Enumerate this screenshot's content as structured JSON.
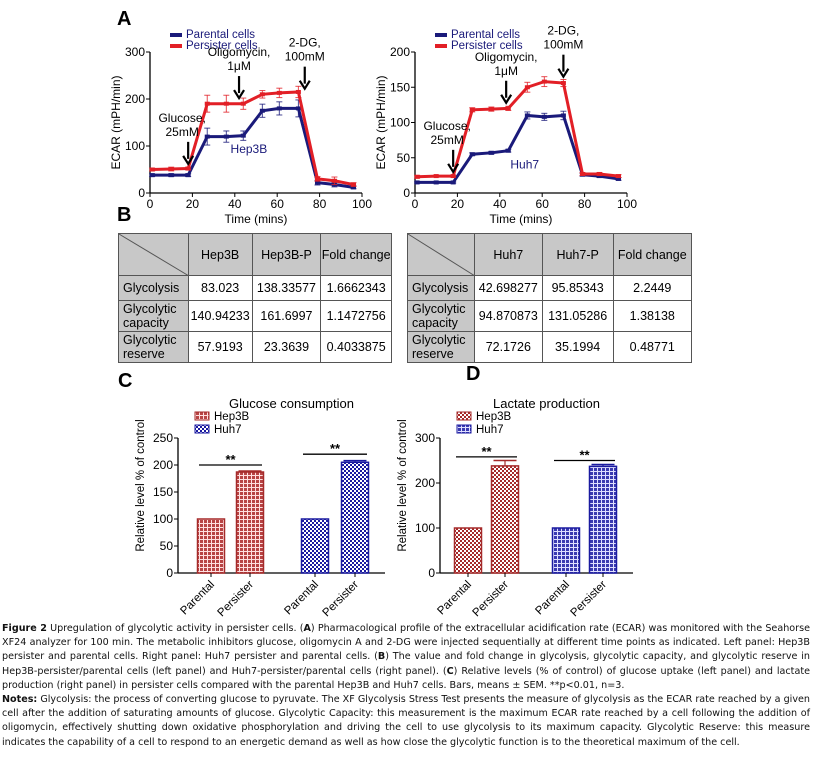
{
  "panels": {
    "A": "A",
    "B": "B",
    "C": "C",
    "D": "D"
  },
  "chart_data": [
    {
      "id": "ecar-hep3b",
      "type": "line",
      "title": "",
      "annotation_label": "Hep3B",
      "xlabel": "Time (mins)",
      "ylabel": "ECAR (mPH/min)",
      "xlim": [
        0,
        100
      ],
      "ylim": [
        0,
        300
      ],
      "xticks": [
        0,
        20,
        40,
        60,
        80,
        100
      ],
      "yticks": [
        0,
        100,
        200,
        300
      ],
      "legend": "top-left",
      "x": [
        1,
        10,
        18,
        27,
        36,
        44,
        53,
        61,
        70,
        79,
        87,
        96
      ],
      "series": [
        {
          "name": "Parental cells",
          "color": "#1a1a7a",
          "values": [
            38,
            38,
            38,
            120,
            120,
            122,
            175,
            180,
            180,
            22,
            18,
            12
          ],
          "errors": [
            3,
            3,
            3,
            18,
            12,
            10,
            14,
            14,
            18,
            5,
            5,
            3
          ]
        },
        {
          "name": "Persister cells",
          "color": "#e21f26",
          "values": [
            50,
            51,
            52,
            190,
            190,
            190,
            210,
            213,
            215,
            30,
            26,
            18
          ],
          "errors": [
            3,
            4,
            3,
            18,
            18,
            12,
            8,
            10,
            12,
            5,
            8,
            4
          ]
        }
      ],
      "annotations": [
        {
          "text": [
            "Glucose,",
            "25mM"
          ],
          "x": 18,
          "arrow_to": 62
        },
        {
          "text": [
            "Oligomycin,",
            "1μM"
          ],
          "x": 42,
          "arrow_to": 202
        },
        {
          "text": [
            "2-DG,",
            "100mM"
          ],
          "x": 73,
          "arrow_to": 222
        }
      ]
    },
    {
      "id": "ecar-huh7",
      "type": "line",
      "title": "",
      "annotation_label": "Huh7",
      "xlabel": "Time (mins)",
      "ylabel": "ECAR (mPH/min)",
      "xlim": [
        0,
        100
      ],
      "ylim": [
        0,
        200
      ],
      "xticks": [
        0,
        20,
        40,
        60,
        80,
        100
      ],
      "yticks": [
        0,
        50,
        100,
        150,
        200
      ],
      "legend": "top-left",
      "x": [
        1,
        10,
        18,
        27,
        36,
        44,
        53,
        61,
        70,
        79,
        87,
        96
      ],
      "series": [
        {
          "name": "Parental cells",
          "color": "#1a1a7a",
          "values": [
            15,
            15,
            15,
            55,
            57,
            60,
            110,
            108,
            110,
            26,
            24,
            20
          ],
          "errors": [
            1,
            1,
            1,
            2,
            2,
            2,
            5,
            5,
            6,
            2,
            2,
            2
          ]
        },
        {
          "name": "Persister cells",
          "color": "#e21f26",
          "values": [
            23,
            24,
            24,
            118,
            119,
            120,
            150,
            158,
            156,
            27,
            27,
            24
          ],
          "errors": [
            2,
            1,
            1,
            3,
            3,
            3,
            7,
            7,
            5,
            2,
            2,
            2
          ]
        }
      ],
      "annotations": [
        {
          "text": [
            "Glucose,",
            "25mM"
          ],
          "x": 18,
          "arrow_to": 30
        },
        {
          "text": [
            "Oligomycin,",
            "1μM"
          ],
          "x": 43,
          "arrow_to": 128
        },
        {
          "text": [
            "2-DG,",
            "100mM"
          ],
          "x": 70,
          "arrow_to": 165
        }
      ]
    },
    {
      "id": "glucose-consumption",
      "type": "bar",
      "title": "Glucose consumption",
      "xlabel": "",
      "ylabel": "Relative level % of control",
      "ylim": [
        0,
        250
      ],
      "yticks": [
        0,
        50,
        100,
        150,
        200,
        250
      ],
      "legend": "top-left",
      "categories": [
        "Parental",
        "Persister",
        "Parental",
        "Persister"
      ],
      "groups": [
        "Hep3B",
        "Hep3B",
        "Huh7",
        "Huh7"
      ],
      "values": [
        100,
        187,
        100,
        205
      ],
      "errors": [
        0,
        2,
        0,
        3
      ],
      "series": [
        {
          "name": "Hep3B",
          "color": "#a52a2a"
        },
        {
          "name": "Huh7",
          "color": "#1a1aa0"
        }
      ],
      "significance": [
        {
          "label": "**",
          "between": [
            0,
            1
          ],
          "y": 200
        },
        {
          "label": "**",
          "between": [
            2,
            3
          ],
          "y": 220
        }
      ]
    },
    {
      "id": "lactate-production",
      "type": "bar",
      "title": "Lactate production",
      "xlabel": "",
      "ylabel": "Relative level % of control",
      "ylim": [
        0,
        300
      ],
      "yticks": [
        0,
        100,
        200,
        300
      ],
      "legend": "top-left",
      "categories": [
        "Parental",
        "Persister",
        "Parental",
        "Persister"
      ],
      "groups": [
        "Hep3B",
        "Hep3B",
        "Huh7",
        "Huh7"
      ],
      "values": [
        100,
        238,
        100,
        237
      ],
      "errors": [
        0,
        12,
        0,
        4
      ],
      "series": [
        {
          "name": "Hep3B",
          "color": "#a52a2a"
        },
        {
          "name": "Huh7",
          "color": "#1a1aa0"
        }
      ],
      "significance": [
        {
          "label": "**",
          "between": [
            0,
            1
          ],
          "y": 258
        },
        {
          "label": "**",
          "between": [
            2,
            3
          ],
          "y": 250
        }
      ]
    }
  ],
  "tables": [
    {
      "headers": [
        "Hep3B",
        "Hep3B-P",
        "Fold change"
      ],
      "rows": [
        {
          "label": [
            "Glycolysis"
          ],
          "values": [
            "83.023",
            "138.33577",
            "1.6662343"
          ]
        },
        {
          "label": [
            "Glycolytic",
            "capacity"
          ],
          "values": [
            "140.94233",
            "161.6997",
            "1.1472756"
          ]
        },
        {
          "label": [
            "Glycolytic",
            "reserve"
          ],
          "values": [
            "57.9193",
            "23.3639",
            "0.4033875"
          ]
        }
      ]
    },
    {
      "headers": [
        "Huh7",
        "Huh7-P",
        "Fold change"
      ],
      "rows": [
        {
          "label": [
            "Glycolysis"
          ],
          "values": [
            "42.698277",
            "95.85343",
            "2.2449"
          ]
        },
        {
          "label": [
            "Glycolytic",
            "capacity"
          ],
          "values": [
            "94.870873",
            "131.05286",
            "1.38138"
          ]
        },
        {
          "label": [
            "Glycolytic",
            "reserve"
          ],
          "values": [
            "72.1726",
            "35.1994",
            "0.48771"
          ]
        }
      ]
    }
  ],
  "caption": {
    "figure_label": "Figure 2",
    "figure_text_1": " Upregulation of glycolytic activity in persister cells. (",
    "A": "A",
    "text_A": ") Pharmacological profile of the extracellular acidification rate (ECAR) was monitored with the Seahorse XF24 analyzer for 100 min. The metabolic inhibitors glucose, oligomycin A and 2-DG were injected sequentially at different time points as indicated. Left panel: Hep3B persister and parental cells. Right panel: Huh7 persister and parental cells. (",
    "B": "B",
    "text_B": ") The value and fold change in glycolysis, glycolytic capacity, and glycolytic reserve in Hep3B-persister/parental cells (left panel) and Huh7-persister/parental cells (right panel). (",
    "C": "C",
    "text_C": ") Relative levels (% of control) of glucose uptake (left panel) and lactate production (right panel) in persister cells compared with the parental Hep3B and Huh7 cells. Bars, means ± SEM. **p<0.01, n=3.",
    "notes_label": "Notes:",
    "notes_text": " Glycolysis: the process of converting glucose to pyruvate. The XF Glycolysis Stress Test presents the measure of glycolysis as the ECAR rate reached by a given cell after the addition of saturating amounts of glucose. Glycolytic Capacity: this measurement is the maximum ECAR rate reached by a cell following the addition of oligomycin, effectively shutting down oxidative phosphorylation and driving the cell to use glycolysis to its maximum capacity. Glycolytic Reserve: this measure indicates the capability of a cell to respond to an energetic demand as well as how close the glycolytic function is to the theoretical maximum of the cell."
  }
}
